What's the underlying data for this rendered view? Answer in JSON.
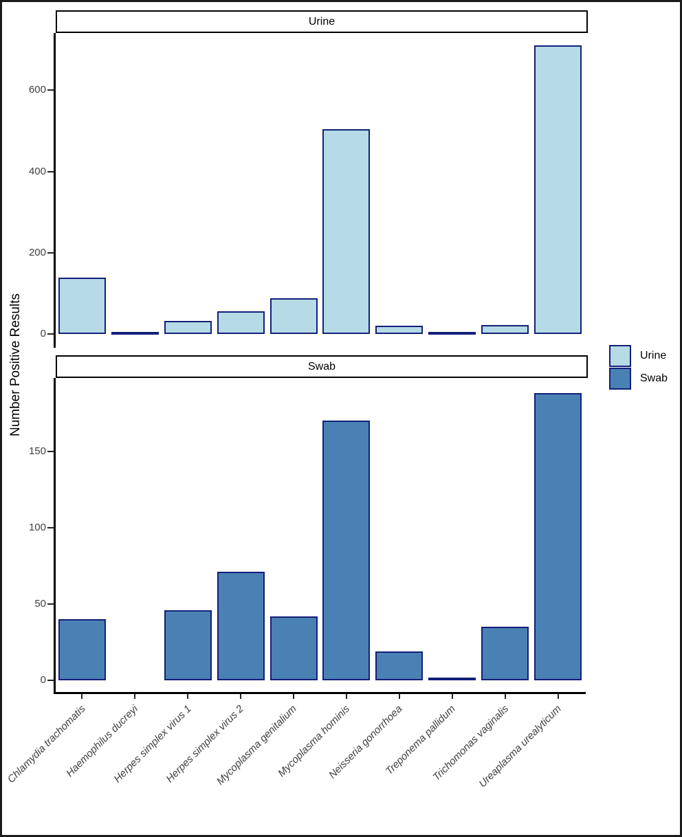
{
  "chart_data": {
    "type": "bar",
    "ylabel": "Number Positive Results",
    "grid": "off",
    "legend_position": "right-middle",
    "categories": [
      "Chlamydia trachomatis",
      "Haemophilus ducreyi",
      "Herpes simplex virus 1",
      "Herpes simplex virus 2",
      "Mycoplasma genitalium",
      "Mycoplasma hominis",
      "Neisseria gonorrhoea",
      "Treponema pallidum",
      "Trichomonas vaginalis",
      "Ureaplasma urealyticum"
    ],
    "facets": [
      {
        "label": "Urine",
        "values": [
          138,
          1,
          32,
          56,
          88,
          504,
          21,
          1,
          22,
          710
        ],
        "yticks": [
          0,
          200,
          400,
          600
        ],
        "ylim": [
          0,
          741
        ],
        "fill": "#b6dae6"
      },
      {
        "label": "Swab",
        "values": [
          40,
          0,
          46,
          71,
          42,
          170,
          19,
          2,
          35,
          188
        ],
        "yticks": [
          0,
          50,
          100,
          150
        ],
        "ylim": [
          0,
          198
        ],
        "fill": "#4a81b4"
      }
    ],
    "legend": {
      "entries": [
        {
          "label": "Urine",
          "color": "#b6dae6"
        },
        {
          "label": "Swab",
          "color": "#4a81b4"
        }
      ]
    },
    "bar_border_color": "#121f78"
  }
}
